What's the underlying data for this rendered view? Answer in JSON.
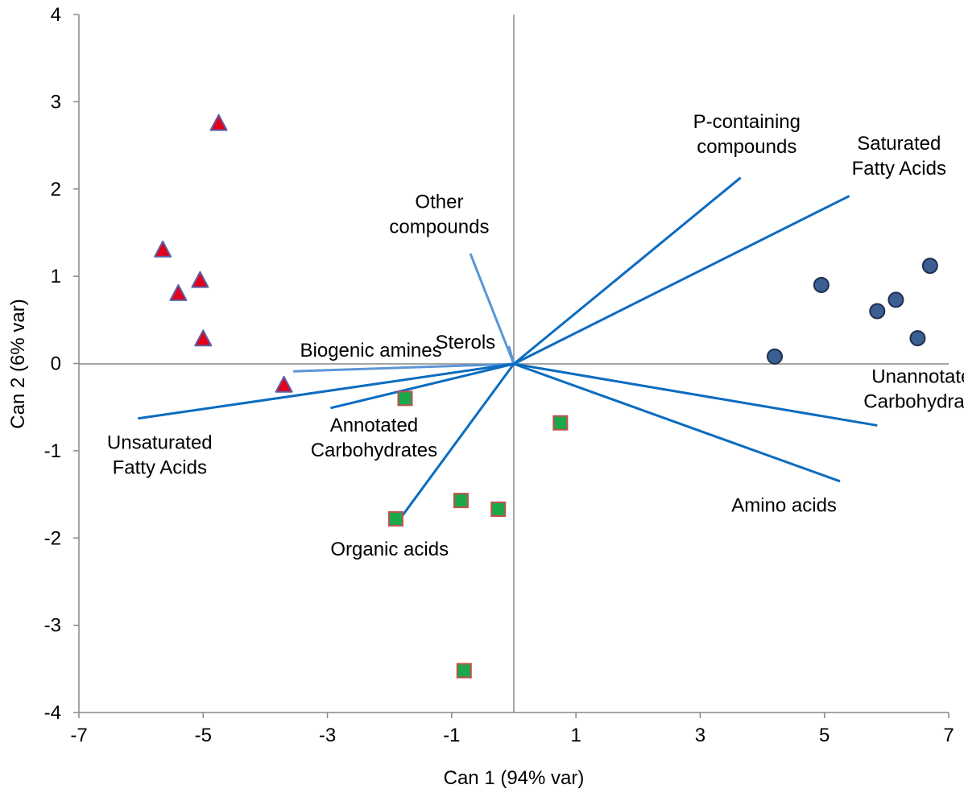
{
  "chart_data": {
    "type": "scatter",
    "title": "",
    "xlabel": "Can 1 (94% var)",
    "ylabel": "Can 2 (6% var)",
    "xlim": [
      -7,
      7
    ],
    "ylim": [
      -4,
      4
    ],
    "x_ticks": [
      -7,
      -5,
      -3,
      -1,
      1,
      3,
      5,
      7
    ],
    "y_ticks": [
      -4,
      -3,
      -2,
      -1,
      0,
      1,
      2,
      3,
      4
    ],
    "x_tick_labels": [
      "-7",
      "-5",
      "-3",
      "-1",
      "1",
      "3",
      "5",
      "7"
    ],
    "y_tick_labels": [
      "-4",
      "-3",
      "-2",
      "-1",
      "0",
      "1",
      "2",
      "3",
      "4"
    ],
    "grid": false,
    "legend": "none",
    "series": [
      {
        "marker": "triangle",
        "color": "#e3001b",
        "edge_color": "#5a62a8",
        "points": [
          {
            "x": -4.75,
            "y": 2.75
          },
          {
            "x": -5.65,
            "y": 1.3
          },
          {
            "x": -5.05,
            "y": 0.95
          },
          {
            "x": -5.4,
            "y": 0.8
          },
          {
            "x": -5.0,
            "y": 0.28
          },
          {
            "x": -3.7,
            "y": -0.25
          }
        ]
      },
      {
        "marker": "square",
        "color": "#1ba84a",
        "edge_color": "#c0504d",
        "points": [
          {
            "x": -1.75,
            "y": -0.4
          },
          {
            "x": 0.75,
            "y": -0.68
          },
          {
            "x": -0.85,
            "y": -1.57
          },
          {
            "x": -0.25,
            "y": -1.67
          },
          {
            "x": -1.9,
            "y": -1.78
          },
          {
            "x": -0.8,
            "y": -3.52
          }
        ]
      },
      {
        "marker": "circle",
        "color": "#3b5f92",
        "edge_color": "#1f2f4f",
        "points": [
          {
            "x": 6.7,
            "y": 1.12
          },
          {
            "x": 4.95,
            "y": 0.9
          },
          {
            "x": 6.15,
            "y": 0.73
          },
          {
            "x": 5.85,
            "y": 0.6
          },
          {
            "x": 6.5,
            "y": 0.29
          },
          {
            "x": 4.2,
            "y": 0.08
          }
        ]
      }
    ],
    "vectors": [
      {
        "label": "P-containing\ncompounds",
        "x": 3.65,
        "y": 2.13,
        "color": "#0b6cc0",
        "label_at": [
          3.75,
          2.7
        ],
        "anchor": "middle"
      },
      {
        "label": "Saturated\nFatty Acids",
        "x": 5.4,
        "y": 1.92,
        "color": "#0b6cc0",
        "label_at": [
          6.2,
          2.45
        ],
        "anchor": "middle"
      },
      {
        "label": "Other\ncompounds",
        "x": -0.7,
        "y": 1.26,
        "color": "#5b96d6",
        "label_at": [
          -1.2,
          1.78
        ],
        "anchor": "middle"
      },
      {
        "label": "Sterols",
        "x": -0.08,
        "y": 0.2,
        "color": "#5b96d6",
        "label_at": [
          -0.78,
          0.17
        ],
        "anchor": "middle"
      },
      {
        "label": "Biogenic amines",
        "x": -3.55,
        "y": -0.09,
        "color": "#5b96d6",
        "label_at": [
          -2.3,
          0.08
        ],
        "anchor": "middle"
      },
      {
        "label": "Unsaturated\nFatty Acids",
        "x": -6.05,
        "y": -0.63,
        "color": "#0b6cc0",
        "label_at": [
          -5.7,
          -0.98
        ],
        "anchor": "middle"
      },
      {
        "label": "Annotated\nCarbohydrates",
        "x": -2.95,
        "y": -0.51,
        "color": "#0b6cc0",
        "label_at": [
          -2.25,
          -0.78
        ],
        "anchor": "middle"
      },
      {
        "label": "Organic acids",
        "x": -1.8,
        "y": -1.75,
        "color": "#0b6cc0",
        "label_at": [
          -2.0,
          -2.2
        ],
        "anchor": "middle"
      },
      {
        "label": "Unannotated\nCarbohydrates",
        "x": 5.85,
        "y": -0.71,
        "color": "#0b6cc0",
        "label_at": [
          6.65,
          -0.22
        ],
        "anchor": "middle"
      },
      {
        "label": "Amino acids",
        "x": 5.25,
        "y": -1.35,
        "color": "#0b6cc0",
        "label_at": [
          4.35,
          -1.7
        ],
        "anchor": "middle"
      }
    ]
  }
}
